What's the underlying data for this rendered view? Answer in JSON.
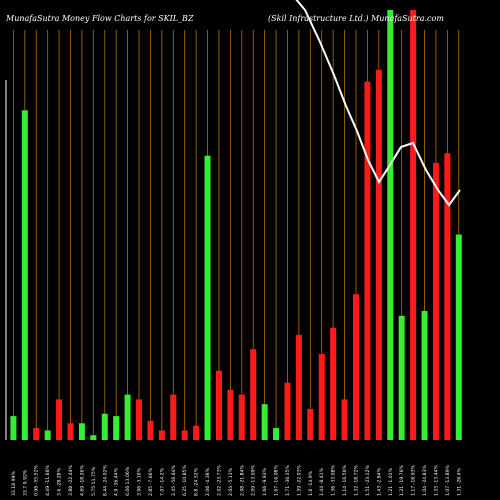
{
  "chart_data": {
    "type": "bar",
    "title": "MunafaSutra  Money Flow  Charts for SKIL_BZ",
    "subtitle": "(Skil Infrastructure   Ltd.) MunafaSutra.com",
    "xlabel": "",
    "ylabel": "",
    "grid": "vertical",
    "colors": {
      "background": "#000000",
      "up": "#33ee33",
      "down": "#ff1a1a",
      "gridline": "#b3700a",
      "line": "#ffffff"
    },
    "categories": [
      "33.18 99%",
      "33.7 9.92%",
      "0.96 -55.52%",
      "4.49 -11.66%",
      "3.6 -28.28%",
      "3.88 -22.44%",
      "4.69 -18.26%",
      "5.75 11.75%",
      "8.44 -24.02%",
      "4.9 -36.44%",
      "6.06 13.06%",
      "3.96 -3.16%",
      "2.85 -7.66%",
      "7.07 -14.2%",
      "2.45 -56.64%",
      "6.25 -10.85%",
      "8.8 -24.32%",
      "2.06 -4.38%",
      "2.02 -23.73%",
      "2.04 -5.13%",
      "2.08 -21.84%",
      "2.09 -13.09%",
      "1.66 -9.93%",
      "1.67 -16.08%",
      "1.71 -36.35%",
      "1.59 -22.03%",
      "1.6 -14.9%",
      "1.44 -8.41%",
      "1.36 -33.08%",
      "1.14 -16.56%",
      "1.32 -18.72%",
      "1.51 -23.12%",
      "1.43 -2.84%",
      "1.21 -1.01%",
      "1.21 -19.76%",
      "1.17 -18.93%",
      "1.04 -24.83%",
      "1.33 -13.44%",
      "1.07 -13.89%",
      "1.31 -28.4%"
    ],
    "values": [
      10,
      138,
      5,
      4,
      17,
      7,
      7,
      2,
      11,
      10,
      19,
      17,
      8,
      4,
      19,
      4,
      6,
      119,
      29,
      21,
      19,
      38,
      15,
      5,
      24,
      44,
      13,
      36,
      47,
      17,
      61,
      150,
      155,
      180,
      52,
      180,
      54,
      116,
      120,
      86
    ],
    "directions": [
      "up",
      "up",
      "down",
      "up",
      "down",
      "down",
      "up",
      "up",
      "up",
      "up",
      "up",
      "down",
      "down",
      "down",
      "down",
      "down",
      "down",
      "up",
      "down",
      "down",
      "down",
      "down",
      "up",
      "up",
      "down",
      "down",
      "down",
      "down",
      "down",
      "down",
      "down",
      "down",
      "down",
      "up",
      "up",
      "down",
      "up",
      "down",
      "down",
      "up"
    ],
    "ylim": [
      0,
      180
    ],
    "line_series": {
      "values": [
        null,
        null,
        null,
        null,
        null,
        null,
        null,
        null,
        null,
        null,
        null,
        null,
        null,
        null,
        null,
        null,
        null,
        null,
        null,
        null,
        null,
        null,
        null,
        null,
        null,
        null,
        null,
        null,
        null,
        null,
        null,
        null,
        null,
        null,
        null,
        null,
        null,
        null,
        null,
        null
      ],
      "path": [
        [
          25.3,
          500
        ],
        [
          27.5,
          460
        ],
        [
          29.5,
          420
        ],
        [
          31.5,
          384
        ],
        [
          33.0,
          352
        ],
        [
          34.5,
          325
        ],
        [
          35.8,
          296
        ],
        [
          37.0,
          277
        ],
        [
          38.0,
          290
        ],
        [
          39.0,
          312
        ],
        [
          39.4,
          300
        ],
        [
          40.0,
          286
        ]
      ]
    }
  }
}
